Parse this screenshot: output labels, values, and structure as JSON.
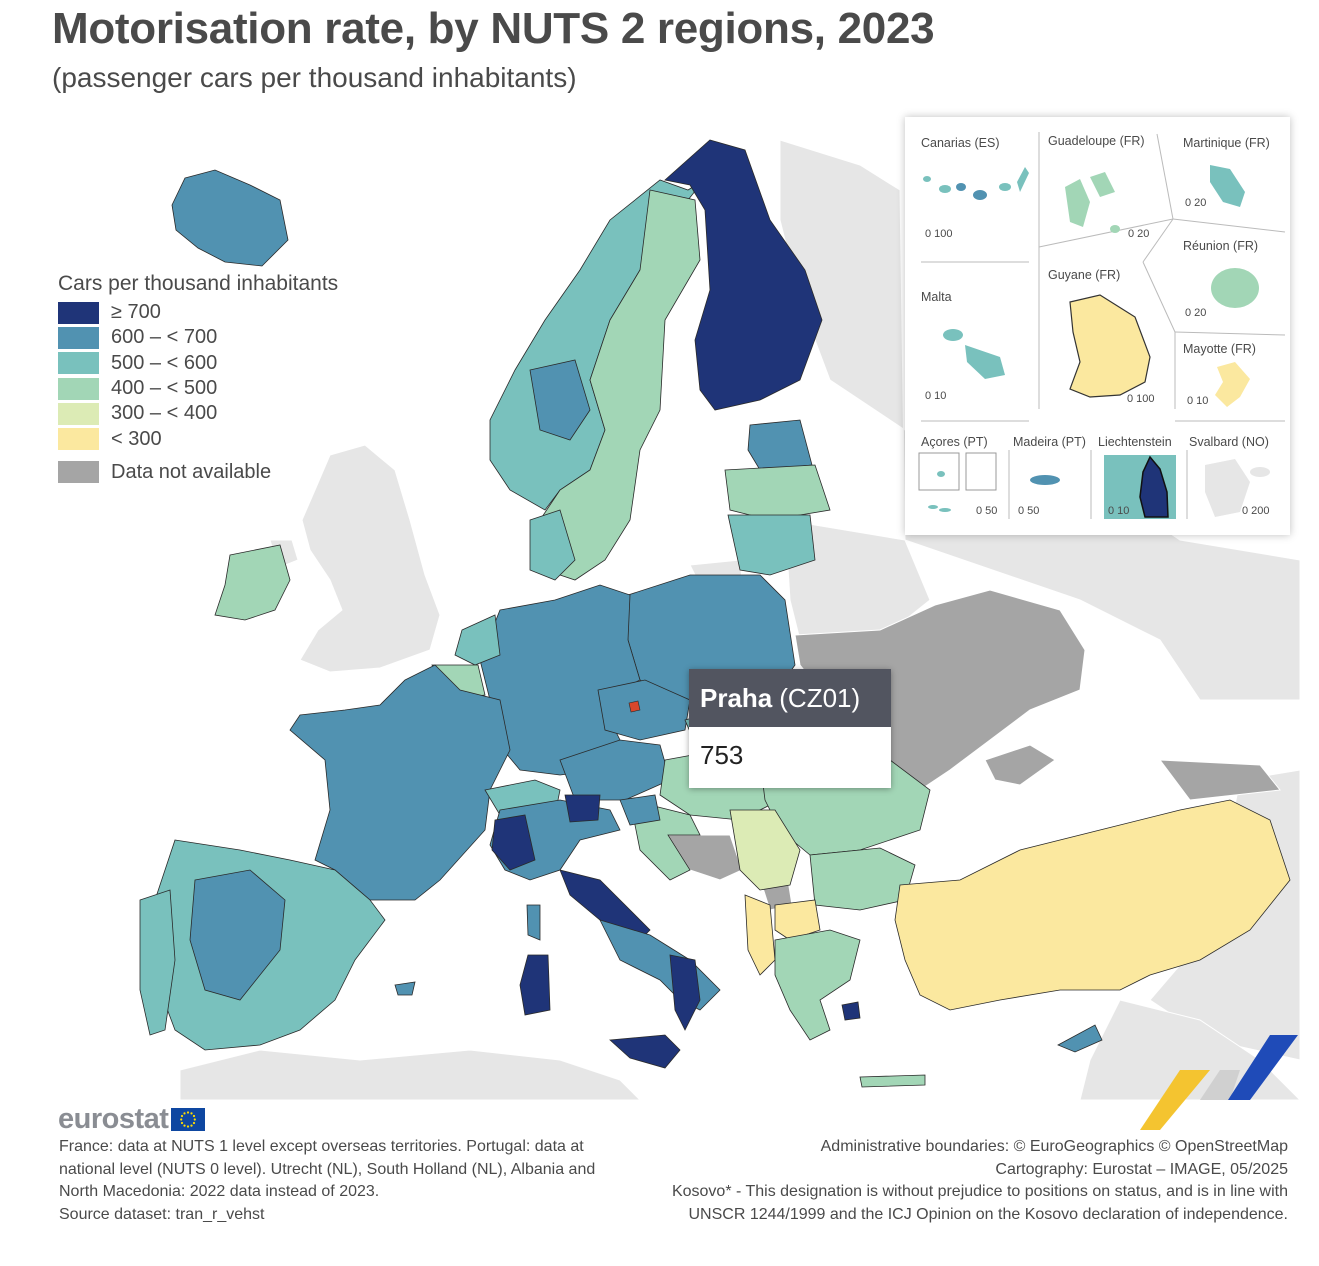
{
  "title": "Motorisation rate, by NUTS 2 regions, 2023",
  "subtitle": "(passenger cars per thousand inhabitants)",
  "legend": {
    "title": "Cars per thousand inhabitants",
    "classes": [
      {
        "label": "≥ 700",
        "color": "#1f3478"
      },
      {
        "label": "600 – < 700",
        "color": "#5192b1"
      },
      {
        "label": "500 – < 600",
        "color": "#79c1bd"
      },
      {
        "label": "400 – < 500",
        "color": "#a2d6b6"
      },
      {
        "label": "300 – < 400",
        "color": "#dcebb5"
      },
      {
        "label": "< 300",
        "color": "#fbe89f"
      }
    ],
    "not_available": {
      "label": "Data not available",
      "color": "#a5a5a5"
    }
  },
  "insets": {
    "canarias": {
      "label": "Canarias (ES)",
      "scale": "0  100"
    },
    "guadeloupe": {
      "label": "Guadeloupe (FR)",
      "scale": "0  20"
    },
    "martinique": {
      "label": "Martinique (FR)",
      "scale": "0  20"
    },
    "reunion": {
      "label": "Réunion (FR)",
      "scale": "0  20"
    },
    "malta": {
      "label": "Malta",
      "scale": "0  10"
    },
    "guyane": {
      "label": "Guyane (FR)",
      "scale": "0   100"
    },
    "mayotte": {
      "label": "Mayotte (FR)",
      "scale": "0 10"
    },
    "acores": {
      "label": "Açores (PT)",
      "scale": "0  50"
    },
    "madeira": {
      "label": "Madeira (PT)",
      "scale": "0     50"
    },
    "liechtenstein": {
      "label": "Liechtenstein",
      "scale": "0   10"
    },
    "svalbard": {
      "label": "Svalbard (NO)",
      "scale": "0    200"
    }
  },
  "tooltip": {
    "region": "Praha",
    "code": "(CZ01)",
    "value": "753"
  },
  "logo": {
    "text": "eurostat"
  },
  "footnotes_left": [
    "France: data at NUTS 1 level except overseas territories. Portugal: data at",
    "national level (NUTS 0 level). Utrecht (NL), South Holland (NL), Albania and",
    "North Macedonia: 2022 data instead of 2023.",
    "Source dataset: tran_r_vehst"
  ],
  "footnotes_right": [
    "Administrative boundaries: © EuroGeographics © OpenStreetMap",
    "Cartography: Eurostat – IMAGE, 05/2025",
    "Kosovo* - This designation is without prejudice to positions on status, and is in line with",
    "UNSCR 1244/1999 and the ICJ Opinion on the Kosovo declaration of independence."
  ],
  "colors": {
    "outside_eu": "#e6e6e6",
    "sea": "#ffffff",
    "border": "#333333",
    "praha": "#d9472b"
  }
}
